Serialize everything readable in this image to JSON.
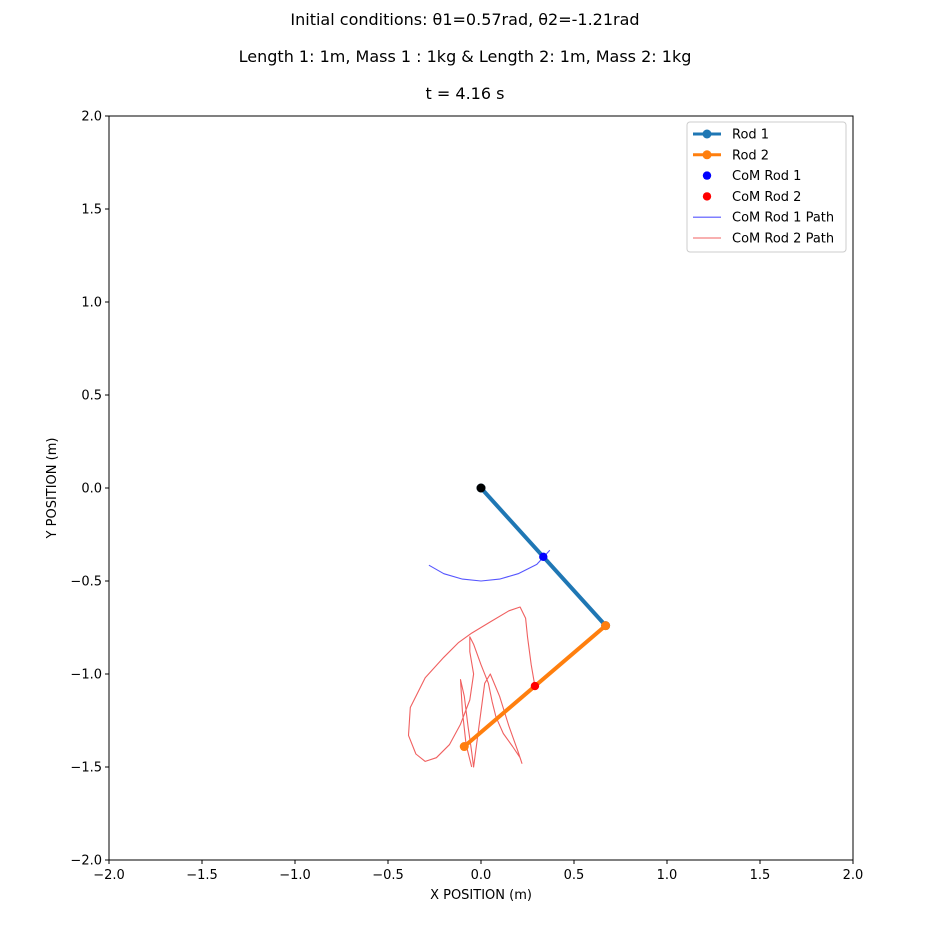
{
  "chart_data": {
    "type": "line",
    "title_lines": [
      "Initial conditions: θ1=0.57rad, θ2=-1.21rad",
      "Length 1: 1m, Mass 1 : 1kg & Length 2: 1m, Mass 2: 1kg",
      "t = 4.16 s"
    ],
    "xlabel": "X POSITION (m)",
    "ylabel": "Y POSITION (m)",
    "xlim": [
      -2.0,
      2.0
    ],
    "ylim": [
      -2.0,
      2.0
    ],
    "xticks": [
      -2.0,
      -1.5,
      -1.0,
      -0.5,
      0.0,
      0.5,
      1.0,
      1.5,
      2.0
    ],
    "xtick_labels": [
      "−2.0",
      "−1.5",
      "−1.0",
      "−0.5",
      "0.0",
      "0.5",
      "1.0",
      "1.5",
      "2.0"
    ],
    "yticks": [
      -2.0,
      -1.5,
      -1.0,
      -0.5,
      0.0,
      0.5,
      1.0,
      1.5,
      2.0
    ],
    "ytick_labels": [
      "−2.0",
      "−1.5",
      "−1.0",
      "−0.5",
      "0.0",
      "0.5",
      "1.0",
      "1.5",
      "2.0"
    ],
    "grid": false,
    "legend_position": "upper-right",
    "pivot": {
      "x": 0.0,
      "y": 0.0,
      "color": "#000000"
    },
    "series": [
      {
        "name": "Rod 1",
        "kind": "line-marker",
        "color": "#1f77b4",
        "x": [
          0.0,
          0.67
        ],
        "y": [
          0.0,
          -0.74
        ]
      },
      {
        "name": "Rod 2",
        "kind": "line-marker",
        "color": "#ff7f0e",
        "x": [
          0.67,
          -0.09
        ],
        "y": [
          -0.74,
          -1.39
        ]
      },
      {
        "name": "CoM Rod 1",
        "kind": "scatter",
        "color": "#0000ff",
        "x": [
          0.335
        ],
        "y": [
          -0.37
        ]
      },
      {
        "name": "CoM Rod 2",
        "kind": "scatter",
        "color": "#ff0000",
        "x": [
          0.29
        ],
        "y": [
          -1.065
        ]
      },
      {
        "name": "CoM Rod 1 Path",
        "kind": "path",
        "color": "#5555ff",
        "x": [
          -0.28,
          -0.2,
          -0.1,
          0.0,
          0.1,
          0.2,
          0.3,
          0.37
        ],
        "y": [
          -0.415,
          -0.461,
          -0.49,
          -0.5,
          -0.49,
          -0.461,
          -0.411,
          -0.335
        ]
      },
      {
        "name": "CoM Rod 2 Path",
        "kind": "path",
        "color": "#f06060",
        "x": [
          0.29,
          0.27,
          0.25,
          0.24,
          0.21,
          0.15,
          0.05,
          -0.05,
          -0.12,
          -0.2,
          -0.3,
          -0.38,
          -0.39,
          -0.35,
          -0.3,
          -0.24,
          -0.17,
          -0.11,
          -0.06,
          -0.04,
          -0.06,
          -0.06,
          -0.04,
          0.0,
          0.04,
          0.06,
          0.08,
          0.12,
          0.17,
          0.21,
          0.22,
          0.2,
          0.15,
          0.1,
          0.05,
          0.02,
          0.0,
          -0.02,
          -0.04,
          -0.05,
          -0.07,
          -0.09,
          -0.11,
          -0.1,
          -0.08,
          -0.05
        ],
        "y": [
          -1.065,
          -0.95,
          -0.8,
          -0.7,
          -0.64,
          -0.66,
          -0.72,
          -0.78,
          -0.83,
          -0.91,
          -1.02,
          -1.18,
          -1.33,
          -1.43,
          -1.47,
          -1.45,
          -1.38,
          -1.27,
          -1.14,
          -1.0,
          -0.88,
          -0.8,
          -0.84,
          -0.95,
          -1.05,
          -1.15,
          -1.23,
          -1.32,
          -1.39,
          -1.45,
          -1.48,
          -1.42,
          -1.28,
          -1.12,
          -1.0,
          -1.05,
          -1.2,
          -1.35,
          -1.5,
          -1.42,
          -1.28,
          -1.12,
          -1.03,
          -1.2,
          -1.38,
          -1.5
        ]
      }
    ]
  }
}
